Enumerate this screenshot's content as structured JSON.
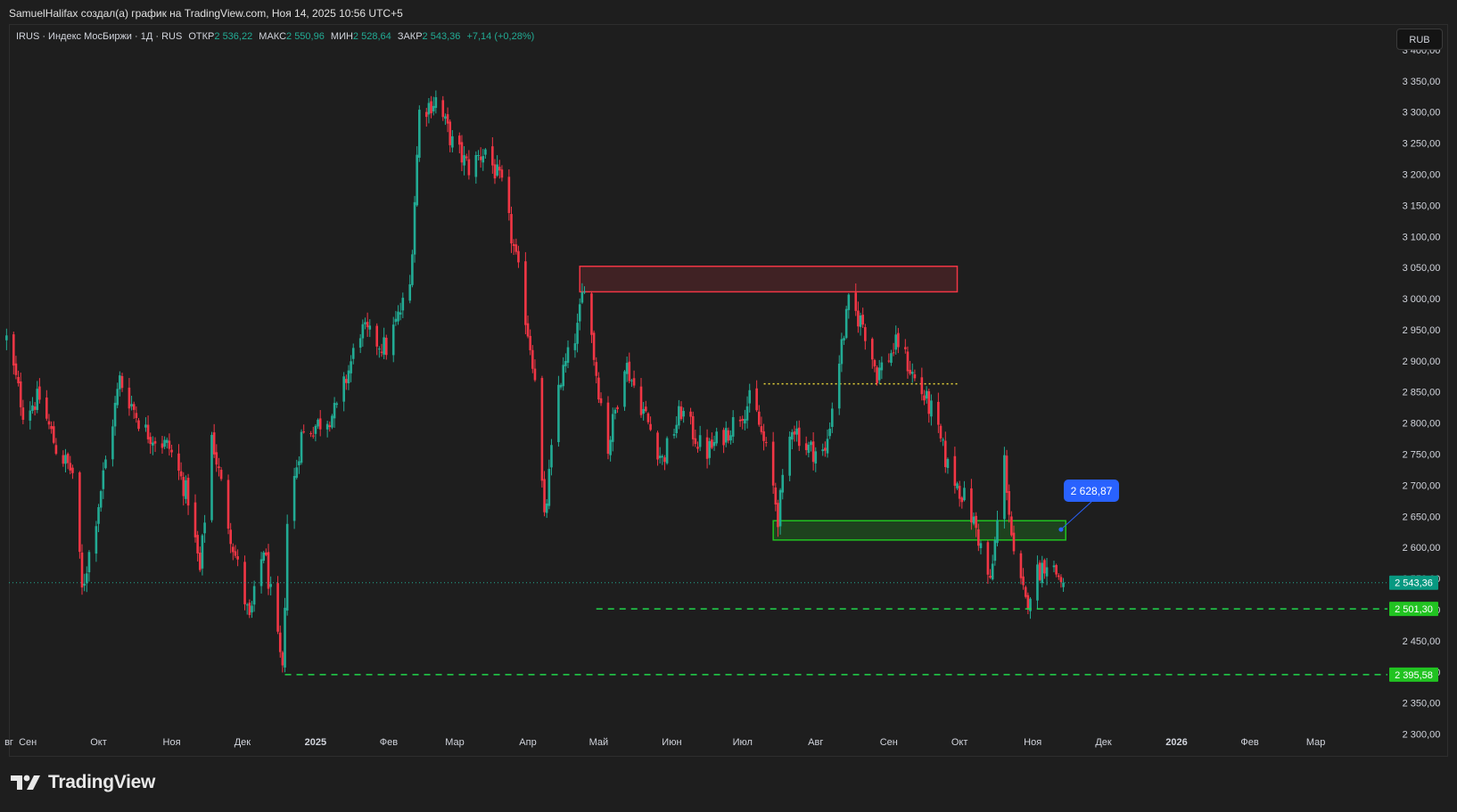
{
  "header": {
    "author_line": "SamuelHalifax создал(а) график на TradingView.com, Ноя 14, 2025 10:56 UTC+5"
  },
  "legend": {
    "symbol": "IRUS · Индекс МосБиржи · 1Д · RUS",
    "open_label": "ОТКР",
    "open_value": "2 536,22",
    "high_label": "МАКС",
    "high_value": "2 550,96",
    "low_label": "МИН",
    "low_value": "2 528,64",
    "close_label": "ЗАКР",
    "close_value": "2 543,36",
    "change": "+7,14 (+0,28%)"
  },
  "currency_button": "RUB",
  "footer": {
    "brand": "TradingView"
  },
  "colors": {
    "up": "#22ab94",
    "down": "#f23645",
    "background": "#1e1e1e",
    "resistance_zone": "#f23645",
    "support_zone": "#21c321",
    "level_line": "#21d64b",
    "dotted_level": "#e8d53a",
    "callout": "#2962ff"
  },
  "chart_data": {
    "type": "candlestick",
    "ylim": [
      2265,
      3440
    ],
    "y_ticks": [
      3400,
      3350,
      3300,
      3250,
      3200,
      3150,
      3100,
      3050,
      3000,
      2950,
      2900,
      2850,
      2800,
      2750,
      2700,
      2650,
      2600,
      2550,
      2500,
      2450,
      2400,
      2350,
      2300
    ],
    "y_tick_labels": [
      "3 400,00",
      "3 350,00",
      "3 300,00",
      "3 250,00",
      "3 200,00",
      "3 150,00",
      "3 100,00",
      "3 050,00",
      "3 000,00",
      "2 950,00",
      "2 900,00",
      "2 850,00",
      "2 800,00",
      "2 750,00",
      "2 700,00",
      "2 650,00",
      "2 600,00",
      "2 550,00",
      "2 500,00",
      "2 450,00",
      "2 400,00",
      "2 350,00",
      "2 300,00"
    ],
    "x_range": [
      "2024-08-24",
      "2026-03-31"
    ],
    "x_ticks": [
      {
        "date": "2024-08-24",
        "label": "вг",
        "bold": false
      },
      {
        "date": "2024-09-01",
        "label": "Сен",
        "bold": false
      },
      {
        "date": "2024-10-01",
        "label": "Окт",
        "bold": false
      },
      {
        "date": "2024-11-01",
        "label": "Ноя",
        "bold": false
      },
      {
        "date": "2024-12-01",
        "label": "Дек",
        "bold": false
      },
      {
        "date": "2025-01-01",
        "label": "2025",
        "bold": true
      },
      {
        "date": "2025-02-01",
        "label": "Фев",
        "bold": false
      },
      {
        "date": "2025-03-01",
        "label": "Мар",
        "bold": false
      },
      {
        "date": "2025-04-01",
        "label": "Апр",
        "bold": false
      },
      {
        "date": "2025-05-01",
        "label": "Май",
        "bold": false
      },
      {
        "date": "2025-06-01",
        "label": "Июн",
        "bold": false
      },
      {
        "date": "2025-07-01",
        "label": "Июл",
        "bold": false
      },
      {
        "date": "2025-08-01",
        "label": "Авг",
        "bold": false
      },
      {
        "date": "2025-09-01",
        "label": "Сен",
        "bold": false
      },
      {
        "date": "2025-10-01",
        "label": "Окт",
        "bold": false
      },
      {
        "date": "2025-11-01",
        "label": "Ноя",
        "bold": false
      },
      {
        "date": "2025-12-01",
        "label": "Дек",
        "bold": false
      },
      {
        "date": "2026-01-01",
        "label": "2026",
        "bold": true
      },
      {
        "date": "2026-02-01",
        "label": "Фев",
        "bold": false
      },
      {
        "date": "2026-03-01",
        "label": "Мар",
        "bold": false
      }
    ],
    "price_path": [
      {
        "date": "2024-08-23",
        "close": 2935
      },
      {
        "date": "2024-08-30",
        "close": 2820
      },
      {
        "date": "2024-09-06",
        "close": 2840
      },
      {
        "date": "2024-09-13",
        "close": 2760
      },
      {
        "date": "2024-09-20",
        "close": 2720
      },
      {
        "date": "2024-09-24",
        "close": 2530
      },
      {
        "date": "2024-09-30",
        "close": 2650
      },
      {
        "date": "2024-10-10",
        "close": 2870
      },
      {
        "date": "2024-10-20",
        "close": 2790
      },
      {
        "date": "2024-10-31",
        "close": 2760
      },
      {
        "date": "2024-11-08",
        "close": 2680
      },
      {
        "date": "2024-11-13",
        "close": 2560
      },
      {
        "date": "2024-11-18",
        "close": 2780
      },
      {
        "date": "2024-11-25",
        "close": 2640
      },
      {
        "date": "2024-12-04",
        "close": 2480
      },
      {
        "date": "2024-12-10",
        "close": 2600
      },
      {
        "date": "2024-12-18",
        "close": 2395
      },
      {
        "date": "2024-12-20",
        "close": 2640
      },
      {
        "date": "2024-12-26",
        "close": 2780
      },
      {
        "date": "2025-01-10",
        "close": 2820
      },
      {
        "date": "2025-01-20",
        "close": 2950
      },
      {
        "date": "2025-01-31",
        "close": 2920
      },
      {
        "date": "2025-02-10",
        "close": 3020
      },
      {
        "date": "2025-02-14",
        "close": 3300
      },
      {
        "date": "2025-02-21",
        "close": 3320
      },
      {
        "date": "2025-02-28",
        "close": 3250
      },
      {
        "date": "2025-03-07",
        "close": 3210
      },
      {
        "date": "2025-03-14",
        "close": 3240
      },
      {
        "date": "2025-03-21",
        "close": 3180
      },
      {
        "date": "2025-03-28",
        "close": 3040
      },
      {
        "date": "2025-04-04",
        "close": 2880
      },
      {
        "date": "2025-04-08",
        "close": 2640
      },
      {
        "date": "2025-04-14",
        "close": 2860
      },
      {
        "date": "2025-04-22",
        "close": 2950
      },
      {
        "date": "2025-04-25",
        "close": 3030
      },
      {
        "date": "2025-04-30",
        "close": 2880
      },
      {
        "date": "2025-05-05",
        "close": 2760
      },
      {
        "date": "2025-05-12",
        "close": 2900
      },
      {
        "date": "2025-05-20",
        "close": 2820
      },
      {
        "date": "2025-05-28",
        "close": 2740
      },
      {
        "date": "2025-06-05",
        "close": 2820
      },
      {
        "date": "2025-06-15",
        "close": 2750
      },
      {
        "date": "2025-06-25",
        "close": 2790
      },
      {
        "date": "2025-07-05",
        "close": 2840
      },
      {
        "date": "2025-07-12",
        "close": 2740
      },
      {
        "date": "2025-07-16",
        "close": 2650
      },
      {
        "date": "2025-07-22",
        "close": 2800
      },
      {
        "date": "2025-07-28",
        "close": 2760
      },
      {
        "date": "2025-08-05",
        "close": 2750
      },
      {
        "date": "2025-08-10",
        "close": 2880
      },
      {
        "date": "2025-08-15",
        "close": 2990
      },
      {
        "date": "2025-08-21",
        "close": 2960
      },
      {
        "date": "2025-08-27",
        "close": 2880
      },
      {
        "date": "2025-09-05",
        "close": 2930
      },
      {
        "date": "2025-09-12",
        "close": 2870
      },
      {
        "date": "2025-09-19",
        "close": 2820
      },
      {
        "date": "2025-09-26",
        "close": 2730
      },
      {
        "date": "2025-10-03",
        "close": 2680
      },
      {
        "date": "2025-10-08",
        "close": 2630
      },
      {
        "date": "2025-10-14",
        "close": 2540
      },
      {
        "date": "2025-10-20",
        "close": 2740
      },
      {
        "date": "2025-10-24",
        "close": 2580
      },
      {
        "date": "2025-10-29",
        "close": 2510
      },
      {
        "date": "2025-11-03",
        "close": 2560
      },
      {
        "date": "2025-11-07",
        "close": 2580
      },
      {
        "date": "2025-11-14",
        "close": 2543.36
      }
    ],
    "resistance_zone": {
      "date_from": "2025-04-23",
      "date_to": "2025-09-30",
      "price_from": 3011,
      "price_to": 3052
    },
    "support_zone": {
      "date_from": "2025-07-14",
      "date_to": "2025-11-15",
      "price_from": 2612,
      "price_to": 2643
    },
    "dotted_level": {
      "date_from": "2025-07-10",
      "date_to": "2025-09-30",
      "price": 2863
    },
    "levels": [
      {
        "price": 2501.3,
        "label": "2 501,30",
        "date_from": "2025-04-30"
      },
      {
        "price": 2395.58,
        "label": "2 395,58",
        "date_from": "2024-12-19"
      }
    ],
    "last_price": {
      "price": 2543.36,
      "label": "2 543,36"
    },
    "callout": {
      "price": 2628.87,
      "label": "2 628,87",
      "anchor_date": "2025-11-13",
      "anchor_price": 2628.87
    }
  }
}
